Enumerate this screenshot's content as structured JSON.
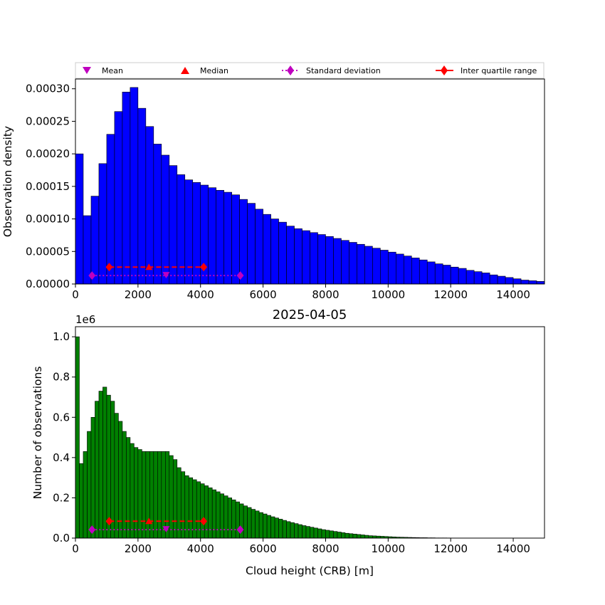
{
  "legend": {
    "items": [
      {
        "label": "Mean",
        "marker": "triangle-down",
        "color": "#bf00bf"
      },
      {
        "label": "Median",
        "marker": "triangle-up",
        "color": "#ff0000"
      },
      {
        "label": "Standard deviation",
        "marker": "diamond",
        "color": "#bf00bf",
        "line": "dotted"
      },
      {
        "label": "Inter quartile range",
        "marker": "diamond",
        "color": "#ff0000",
        "line": "solid"
      }
    ]
  },
  "chart_data": [
    {
      "type": "bar",
      "title": "",
      "xlabel": "",
      "ylabel": "Observation density",
      "bar_color": "#0000ff",
      "bin_width": 250,
      "x": [
        0,
        250,
        500,
        750,
        1000,
        1250,
        1500,
        1750,
        2000,
        2250,
        2500,
        2750,
        3000,
        3250,
        3500,
        3750,
        4000,
        4250,
        4500,
        4750,
        5000,
        5250,
        5500,
        5750,
        6000,
        6250,
        6500,
        6750,
        7000,
        7250,
        7500,
        7750,
        8000,
        8250,
        8500,
        8750,
        9000,
        9250,
        9500,
        9750,
        10000,
        10250,
        10500,
        10750,
        11000,
        11250,
        11500,
        11750,
        12000,
        12250,
        12500,
        12750,
        13000,
        13250,
        13500,
        13750,
        14000,
        14250,
        14500,
        14750
      ],
      "values": [
        0.0002,
        0.000105,
        0.000135,
        0.000185,
        0.00023,
        0.000265,
        0.000295,
        0.000302,
        0.00027,
        0.000242,
        0.000215,
        0.000198,
        0.000182,
        0.000168,
        0.00016,
        0.000156,
        0.000152,
        0.000148,
        0.000144,
        0.000141,
        0.000137,
        0.00013,
        0.000124,
        0.000115,
        0.000107,
        0.0001,
        9.5e-05,
        8.9e-05,
        8.5e-05,
        8.2e-05,
        7.9e-05,
        7.6e-05,
        7.3e-05,
        7e-05,
        6.7e-05,
        6.4e-05,
        6.1e-05,
        5.8e-05,
        5.5e-05,
        5.2e-05,
        4.9e-05,
        4.6e-05,
        4.3e-05,
        4e-05,
        3.7e-05,
        3.4e-05,
        3.1e-05,
        2.9e-05,
        2.6e-05,
        2.4e-05,
        2.1e-05,
        1.9e-05,
        1.7e-05,
        1.4e-05,
        1.2e-05,
        1e-05,
        8e-06,
        6e-06,
        5e-06,
        4e-06
      ],
      "xlim": [
        0,
        15000
      ],
      "ylim": [
        0,
        0.000315
      ],
      "x_ticks": [
        0,
        2000,
        4000,
        6000,
        8000,
        10000,
        12000,
        14000
      ],
      "x_tick_labels": [
        "0",
        "2000",
        "4000",
        "6000",
        "8000",
        "10000",
        "12000",
        "14000"
      ],
      "y_ticks": [
        0,
        5e-05,
        0.0001,
        0.00015,
        0.0002,
        0.00025,
        0.0003
      ],
      "y_tick_labels": [
        "0.00000",
        "0.00005",
        "0.00010",
        "0.00015",
        "0.00020",
        "0.00025",
        "0.00030"
      ],
      "stats": {
        "mean": {
          "x": 2900,
          "y": 1.3e-05
        },
        "median": {
          "x": 2350,
          "y": 2.6e-05
        },
        "std": {
          "x": [
            530,
            5270
          ],
          "y": 1.3e-05
        },
        "iqr": {
          "x": [
            1080,
            4100
          ],
          "y": 2.6e-05
        }
      },
      "grid": false,
      "legend_position": "top"
    },
    {
      "type": "bar",
      "title": "2025-04-05",
      "xlabel": "Cloud height (CRB) [m]",
      "ylabel": "Number of observations",
      "y_scale_label": "1e6",
      "bar_color": "#008000",
      "bin_width": 125,
      "x": [
        0,
        125,
        250,
        375,
        500,
        625,
        750,
        875,
        1000,
        1125,
        1250,
        1375,
        1500,
        1625,
        1750,
        1875,
        2000,
        2125,
        2250,
        2375,
        2500,
        2625,
        2750,
        2875,
        3000,
        3125,
        3250,
        3375,
        3500,
        3625,
        3750,
        3875,
        4000,
        4125,
        4250,
        4375,
        4500,
        4625,
        4750,
        4875,
        5000,
        5125,
        5250,
        5375,
        5500,
        5625,
        5750,
        5875,
        6000,
        6125,
        6250,
        6375,
        6500,
        6625,
        6750,
        6875,
        7000,
        7125,
        7250,
        7375,
        7500,
        7625,
        7750,
        7875,
        8000,
        8125,
        8250,
        8375,
        8500,
        8625,
        8750,
        8875,
        9000,
        9125,
        9250,
        9375,
        9500,
        9625,
        9750,
        9875,
        10000,
        10125,
        10250,
        10375,
        10500,
        10625,
        10750,
        10875,
        11000,
        11125,
        11250,
        11375,
        11500,
        11625,
        11750,
        11875,
        12000,
        12125,
        12250,
        12375,
        12500,
        12625,
        12750,
        12875,
        13000,
        13125,
        13250,
        13375,
        13500,
        13625,
        13750,
        13875,
        14000,
        14125,
        14250,
        14375,
        14500,
        14625,
        14750,
        14875
      ],
      "values": [
        1.0,
        0.37,
        0.43,
        0.53,
        0.6,
        0.68,
        0.73,
        0.75,
        0.71,
        0.68,
        0.62,
        0.58,
        0.53,
        0.5,
        0.47,
        0.45,
        0.44,
        0.43,
        0.43,
        0.43,
        0.43,
        0.43,
        0.43,
        0.43,
        0.41,
        0.39,
        0.35,
        0.33,
        0.31,
        0.3,
        0.29,
        0.28,
        0.27,
        0.26,
        0.25,
        0.24,
        0.23,
        0.22,
        0.21,
        0.2,
        0.19,
        0.18,
        0.17,
        0.16,
        0.152,
        0.143,
        0.135,
        0.127,
        0.12,
        0.113,
        0.106,
        0.1,
        0.094,
        0.088,
        0.082,
        0.077,
        0.072,
        0.067,
        0.062,
        0.058,
        0.054,
        0.05,
        0.046,
        0.042,
        0.039,
        0.036,
        0.033,
        0.03,
        0.027,
        0.024,
        0.022,
        0.02,
        0.018,
        0.016,
        0.014,
        0.012,
        0.011,
        0.01,
        0.009,
        0.008,
        0.007,
        0.006,
        0.005,
        0.0045,
        0.004,
        0.0035,
        0.003,
        0.0025,
        0.002,
        0.002,
        0.0015,
        0.0015,
        0.001,
        0.001,
        0.001,
        0.0008,
        0.0006,
        0.0005,
        0.0004,
        0.0003,
        0.0003,
        0.0002,
        0.0002,
        0.0001,
        0.0001,
        0.0001,
        0.0001,
        0.0001,
        0,
        0,
        0,
        0,
        0,
        0,
        0,
        0,
        0,
        0,
        0,
        0
      ],
      "xlim": [
        0,
        15000
      ],
      "ylim": [
        0,
        1.05
      ],
      "x_ticks": [
        0,
        2000,
        4000,
        6000,
        8000,
        10000,
        12000,
        14000
      ],
      "x_tick_labels": [
        "0",
        "2000",
        "4000",
        "6000",
        "8000",
        "10000",
        "12000",
        "14000"
      ],
      "y_ticks": [
        0,
        0.2,
        0.4,
        0.6,
        0.8,
        1.0
      ],
      "y_tick_labels": [
        "0.0",
        "0.2",
        "0.4",
        "0.6",
        "0.8",
        "1.0"
      ],
      "stats": {
        "mean": {
          "x": 2900,
          "y": 0.042
        },
        "median": {
          "x": 2350,
          "y": 0.084
        },
        "std": {
          "x": [
            530,
            5270
          ],
          "y": 0.042
        },
        "iqr": {
          "x": [
            1080,
            4100
          ],
          "y": 0.084
        }
      },
      "grid": false
    }
  ]
}
